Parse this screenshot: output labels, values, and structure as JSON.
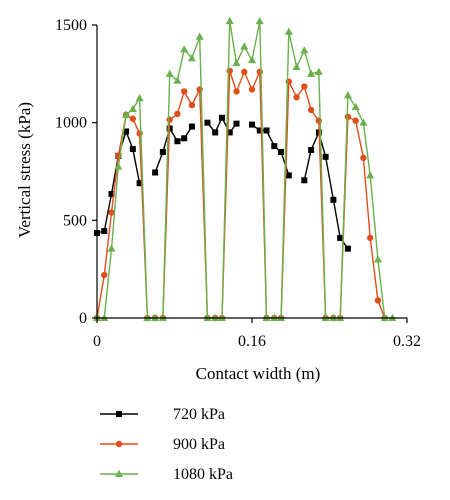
{
  "chart_data": {
    "type": "line",
    "title": "",
    "xlabel": "Contact width (m)",
    "ylabel": "Vertical stress (kPa)",
    "xlim": [
      0,
      0.32
    ],
    "ylim": [
      0,
      1500
    ],
    "xticks": [
      "0",
      "0.16",
      "0.32"
    ],
    "yticks": [
      "0",
      "500",
      "1000",
      "1500"
    ],
    "grid": false,
    "legend_position": "bottom-left",
    "series": [
      {
        "name": "720 kPa",
        "color": "#000000",
        "marker": "square",
        "segments": [
          [
            [
              0,
              435
            ],
            [
              0.0075,
              445
            ],
            [
              0.015,
              635
            ],
            [
              0.022,
              830
            ],
            [
              0.03,
              955
            ],
            [
              0.037,
              865
            ],
            [
              0.044,
              690
            ]
          ],
          [
            [
              0.06,
              745
            ],
            [
              0.068,
              850
            ],
            [
              0.075,
              970
            ],
            [
              0.083,
              905
            ],
            [
              0.09,
              920
            ],
            [
              0.098,
              980
            ]
          ],
          [
            [
              0.114,
              1000
            ],
            [
              0.122,
              950
            ],
            [
              0.129,
              1025
            ],
            [
              0.137,
              950
            ],
            [
              0.144,
              995
            ]
          ],
          [
            [
              0.16,
              990
            ],
            [
              0.168,
              960
            ],
            [
              0.175,
              960
            ],
            [
              0.183,
              880
            ],
            [
              0.19,
              850
            ],
            [
              0.198,
              730
            ]
          ],
          [
            [
              0.214,
              705
            ],
            [
              0.221,
              860
            ],
            [
              0.229,
              950
            ],
            [
              0.236,
              825
            ],
            [
              0.244,
              605
            ],
            [
              0.251,
              410
            ],
            [
              0.259,
              355
            ]
          ]
        ]
      },
      {
        "name": "900 kPa",
        "color": "#e04e1c",
        "marker": "circle",
        "segments": [
          [
            [
              0,
              0
            ],
            [
              0.0075,
              220
            ],
            [
              0.015,
              540
            ],
            [
              0.022,
              830
            ],
            [
              0.03,
              1040
            ],
            [
              0.037,
              1020
            ],
            [
              0.044,
              945
            ],
            [
              0.052,
              0
            ],
            [
              0.06,
              0
            ]
          ],
          [
            [
              0.068,
              0
            ],
            [
              0.075,
              1015
            ],
            [
              0.083,
              1045
            ],
            [
              0.09,
              1160
            ],
            [
              0.098,
              1090
            ],
            [
              0.106,
              1170
            ],
            [
              0.114,
              0
            ],
            [
              0.122,
              0
            ]
          ],
          [
            [
              0.129,
              0
            ],
            [
              0.137,
              1265
            ],
            [
              0.144,
              1160
            ],
            [
              0.152,
              1260
            ],
            [
              0.16,
              1170
            ],
            [
              0.168,
              1260
            ],
            [
              0.175,
              0
            ],
            [
              0.183,
              0
            ]
          ],
          [
            [
              0.19,
              0
            ],
            [
              0.198,
              1210
            ],
            [
              0.206,
              1130
            ],
            [
              0.214,
              1185
            ],
            [
              0.221,
              1065
            ],
            [
              0.229,
              1010
            ],
            [
              0.236,
              0
            ],
            [
              0.244,
              0
            ]
          ],
          [
            [
              0.251,
              0
            ],
            [
              0.259,
              1030
            ],
            [
              0.267,
              1010
            ],
            [
              0.275,
              820
            ],
            [
              0.282,
              410
            ],
            [
              0.29,
              90
            ],
            [
              0.297,
              0
            ]
          ]
        ]
      },
      {
        "name": "1080 kPa",
        "color": "#6ab04c",
        "marker": "triangle",
        "segments": [
          [
            [
              0,
              0
            ],
            [
              0.0075,
              0
            ],
            [
              0.015,
              355
            ],
            [
              0.022,
              775
            ],
            [
              0.03,
              1040
            ],
            [
              0.037,
              1070
            ],
            [
              0.044,
              1125
            ],
            [
              0.052,
              0
            ],
            [
              0.06,
              0
            ]
          ],
          [
            [
              0.068,
              0
            ],
            [
              0.075,
              1250
            ],
            [
              0.083,
              1215
            ],
            [
              0.09,
              1375
            ],
            [
              0.098,
              1330
            ],
            [
              0.106,
              1440
            ],
            [
              0.114,
              0
            ],
            [
              0.122,
              0
            ]
          ],
          [
            [
              0.129,
              0
            ],
            [
              0.137,
              1520
            ],
            [
              0.144,
              1305
            ],
            [
              0.152,
              1390
            ],
            [
              0.16,
              1320
            ],
            [
              0.168,
              1520
            ],
            [
              0.175,
              0
            ],
            [
              0.183,
              0
            ]
          ],
          [
            [
              0.19,
              0
            ],
            [
              0.198,
              1465
            ],
            [
              0.206,
              1285
            ],
            [
              0.214,
              1370
            ],
            [
              0.221,
              1250
            ],
            [
              0.229,
              1260
            ],
            [
              0.236,
              0
            ],
            [
              0.244,
              0
            ]
          ],
          [
            [
              0.251,
              0
            ],
            [
              0.259,
              1140
            ],
            [
              0.267,
              1080
            ],
            [
              0.275,
              1000
            ],
            [
              0.282,
              730
            ],
            [
              0.29,
              300
            ],
            [
              0.297,
              0
            ],
            [
              0.305,
              0
            ]
          ]
        ]
      }
    ]
  }
}
